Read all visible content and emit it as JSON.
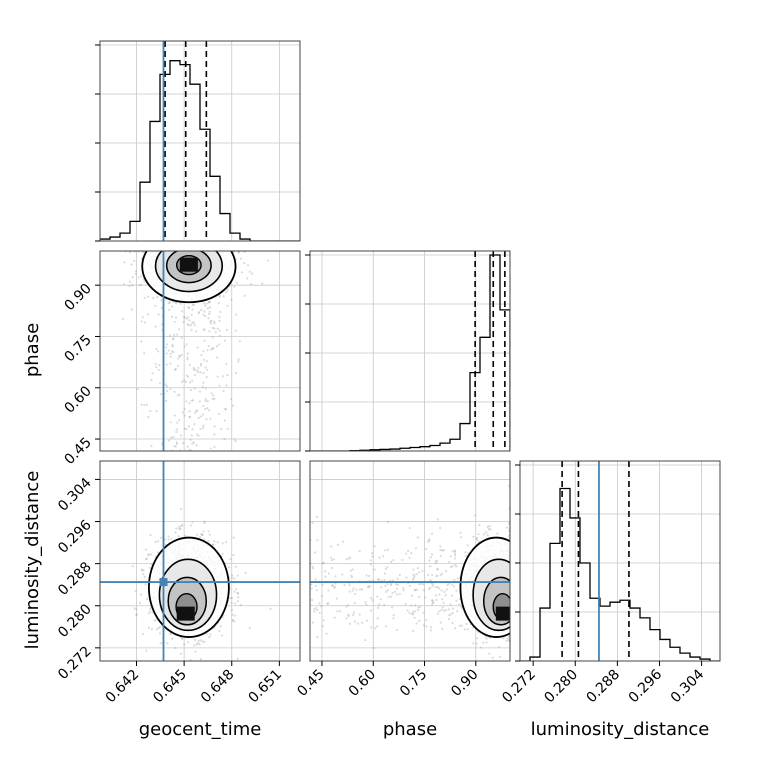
{
  "chart_data": {
    "type": "corner",
    "parameters": [
      "geocent_time",
      "phase",
      "luminosity_distance"
    ],
    "axis_labels": {
      "geocent_time": "geocent_time",
      "phase": "phase",
      "luminosity_distance": "luminosity_distance"
    },
    "ticks": {
      "geocent_time": [
        "0.642",
        "0.645",
        "0.648",
        "0.651"
      ],
      "phase": [
        "0.45",
        "0.60",
        "0.75",
        "0.90"
      ],
      "luminosity_distance": [
        "0.272",
        "0.280",
        "0.288",
        "0.296",
        "0.304"
      ]
    },
    "ranges": {
      "geocent_time": [
        0.6397,
        0.6523
      ],
      "phase": [
        0.415,
        1.0
      ],
      "luminosity_distance": [
        0.2695,
        0.3075
      ]
    },
    "truths": {
      "geocent_time": 0.6437,
      "phase": null,
      "luminosity_distance": 0.2845
    },
    "quantiles": {
      "geocent_time": [
        0.6438,
        0.6451,
        0.6464
      ],
      "phase": [
        0.898,
        0.951,
        0.985
      ],
      "luminosity_distance": [
        0.2775,
        0.2806,
        0.2902
      ]
    },
    "histograms": {
      "geocent_time": {
        "edges": [
          0.6397,
          0.64033,
          0.64096,
          0.64159,
          0.64222,
          0.64285,
          0.64348,
          0.64411,
          0.64474,
          0.64537,
          0.646,
          0.64663,
          0.64726,
          0.64789,
          0.64852,
          0.64915,
          0.64978,
          0.65041,
          0.65104,
          0.65167,
          0.6523
        ],
        "counts": [
          0.01,
          0.02,
          0.04,
          0.1,
          0.3,
          0.61,
          0.85,
          0.92,
          0.9,
          0.8,
          0.57,
          0.33,
          0.14,
          0.04,
          0.01,
          0.0,
          0.0,
          0.0,
          0.0,
          0.0
        ]
      },
      "phase": {
        "edges": [
          0.415,
          0.44425,
          0.4735,
          0.50275,
          0.532,
          0.56125,
          0.5905,
          0.61975,
          0.649,
          0.67825,
          0.7075,
          0.73675,
          0.766,
          0.79525,
          0.8245,
          0.85375,
          0.883,
          0.91225,
          0.9415,
          0.97075,
          1.0
        ],
        "counts": [
          0.0,
          0.0,
          0.0,
          0.0,
          0.002,
          0.004,
          0.006,
          0.008,
          0.01,
          0.014,
          0.018,
          0.022,
          0.028,
          0.04,
          0.06,
          0.14,
          0.4,
          0.58,
          1.0,
          0.72
        ]
      },
      "luminosity_distance": {
        "edges": [
          0.2695,
          0.2714,
          0.2733,
          0.2752,
          0.2771,
          0.279,
          0.2809,
          0.2828,
          0.2847,
          0.2866,
          0.2885,
          0.2904,
          0.2923,
          0.2942,
          0.2961,
          0.298,
          0.2999,
          0.3018,
          0.3037,
          0.3056,
          0.3075
        ],
        "counts": [
          0.0,
          0.02,
          0.27,
          0.6,
          0.88,
          0.73,
          0.5,
          0.32,
          0.28,
          0.3,
          0.31,
          0.27,
          0.22,
          0.16,
          0.11,
          0.07,
          0.04,
          0.02,
          0.01,
          0.0
        ]
      }
    },
    "joint": [
      {
        "x": "geocent_time",
        "y": "phase",
        "mean": [
          0.6453,
          0.955
        ],
        "std": [
          0.0014,
          0.05
        ],
        "peak": [
          0.6453,
          0.96
        ],
        "n_points": 1300
      },
      {
        "x": "geocent_time",
        "y": "luminosity_distance",
        "mean": [
          0.6453,
          0.2835
        ],
        "std": [
          0.0012,
          0.0045
        ],
        "peak": [
          0.6451,
          0.2785
        ],
        "n_points": 1400
      },
      {
        "x": "phase",
        "y": "luminosity_distance",
        "mean": [
          0.96,
          0.2835
        ],
        "std": [
          0.05,
          0.0045
        ],
        "peak": [
          0.985,
          0.2785
        ],
        "n_points": 1300
      }
    ],
    "grid": true,
    "colors": {
      "truth": "#4682b4",
      "hist": "#000000",
      "grid": "#c8c8c8",
      "scatter": "#999999"
    }
  }
}
